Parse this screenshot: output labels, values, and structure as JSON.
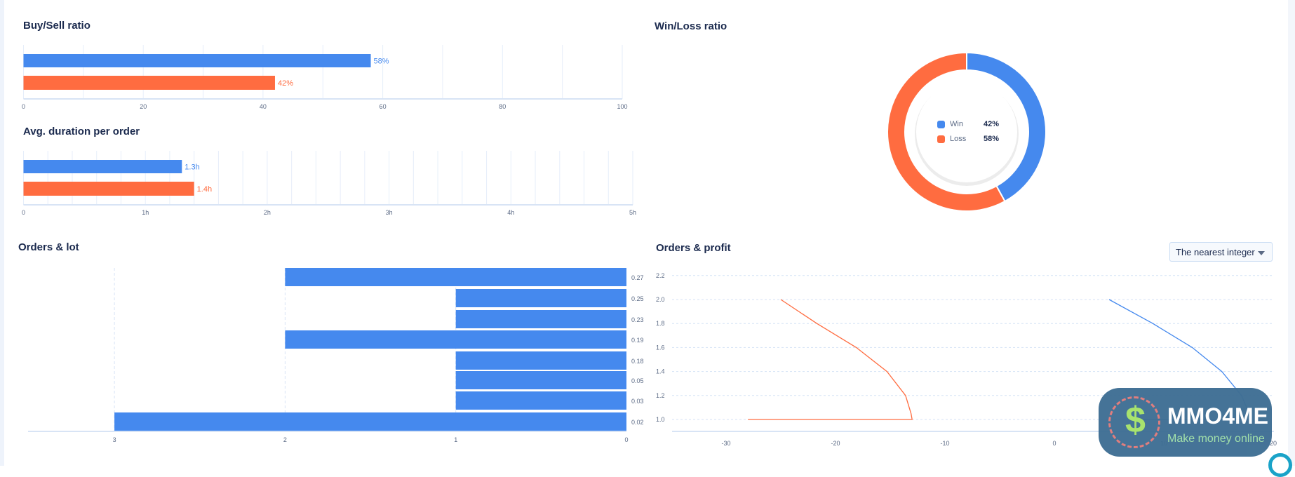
{
  "colors": {
    "blue": "#4589ee",
    "orange": "#ff6c40",
    "text": "#1b2a4e",
    "grid": "#e6eefa"
  },
  "buy_sell": {
    "title": "Buy/Sell ratio"
  },
  "avg_duration": {
    "title": "Avg. duration per order"
  },
  "win_loss": {
    "title": "Win/Loss ratio",
    "legend": [
      {
        "label": "Win",
        "value": "42%"
      },
      {
        "label": "Loss",
        "value": "58%"
      }
    ]
  },
  "orders_lot": {
    "title": "Orders & lot"
  },
  "orders_profit": {
    "title": "Orders & profit",
    "dropdown": {
      "selected": "The nearest integer",
      "icon": "caret-down-icon"
    }
  },
  "watermark": {
    "brand": "MMO4ME",
    "tagline": "Make money online"
  },
  "chart_data": [
    {
      "id": "buy_sell",
      "type": "bar",
      "orientation": "horizontal",
      "title": "Buy/Sell ratio",
      "series": [
        {
          "values": [
            58
          ],
          "color": "#4589ee",
          "label": "58%"
        },
        {
          "values": [
            42
          ],
          "color": "#ff6c40",
          "label": "42%"
        }
      ],
      "xlim": [
        0,
        100
      ],
      "xticks": [
        "0",
        "20",
        "40",
        "60",
        "80",
        "100"
      ],
      "grid": true
    },
    {
      "id": "avg_duration",
      "type": "bar",
      "orientation": "horizontal",
      "title": "Avg. duration per order",
      "series": [
        {
          "values": [
            1.3
          ],
          "color": "#4589ee",
          "label": "1.3h"
        },
        {
          "values": [
            1.4
          ],
          "color": "#ff6c40",
          "label": "1.4h"
        }
      ],
      "xlim": [
        0,
        5
      ],
      "xticks": [
        "0",
        "1h",
        "2h",
        "3h",
        "4h",
        "5h"
      ],
      "grid": true
    },
    {
      "id": "win_loss",
      "type": "pie",
      "donut": true,
      "title": "Win/Loss ratio",
      "slices": [
        {
          "label": "Win",
          "value": 42,
          "color": "#4589ee"
        },
        {
          "label": "Loss",
          "value": 58,
          "color": "#ff6c40"
        }
      ]
    },
    {
      "id": "orders_lot",
      "type": "bar",
      "orientation": "horizontal",
      "title": "Orders & lot",
      "x_reversed": true,
      "categories": [
        "0.27",
        "0.25",
        "0.23",
        "0.19",
        "0.18",
        "0.05",
        "0.03",
        "0.02"
      ],
      "values": [
        2,
        1,
        1,
        2,
        1,
        1,
        1,
        3
      ],
      "xlim": [
        0,
        3.4
      ],
      "xticks": [
        "3",
        "2",
        "1",
        "0"
      ],
      "color": "#4589ee"
    },
    {
      "id": "orders_profit",
      "type": "line",
      "title": "Orders & profit",
      "xlim": [
        -35,
        20
      ],
      "ylim": [
        0.9,
        2.2
      ],
      "xticks": [
        "-30",
        "-20",
        "-10",
        "0",
        "10",
        "20"
      ],
      "yticks": [
        "1.0",
        "1.2",
        "1.4",
        "1.6",
        "1.8",
        "2.0",
        "2.2"
      ],
      "grid": "horizontal-dashed",
      "series": [
        {
          "color": "#ff6c40",
          "points": [
            [
              -25,
              2.0
            ],
            [
              -21.7,
              1.8
            ],
            [
              -18.1,
              1.6
            ],
            [
              -15.3,
              1.4
            ],
            [
              -13.6,
              1.2
            ],
            [
              -13.1,
              1.05
            ],
            [
              -13.0,
              1.0
            ],
            [
              -28,
              1.0
            ]
          ]
        },
        {
          "color": "#4589ee",
          "points": [
            [
              5,
              2.0
            ],
            [
              9.0,
              1.8
            ],
            [
              12.6,
              1.6
            ],
            [
              15.3,
              1.4
            ],
            [
              17.1,
              1.2
            ],
            [
              17.8,
              1.05
            ],
            [
              17.9,
              1.0
            ],
            [
              8,
              1.0
            ]
          ]
        }
      ]
    }
  ]
}
